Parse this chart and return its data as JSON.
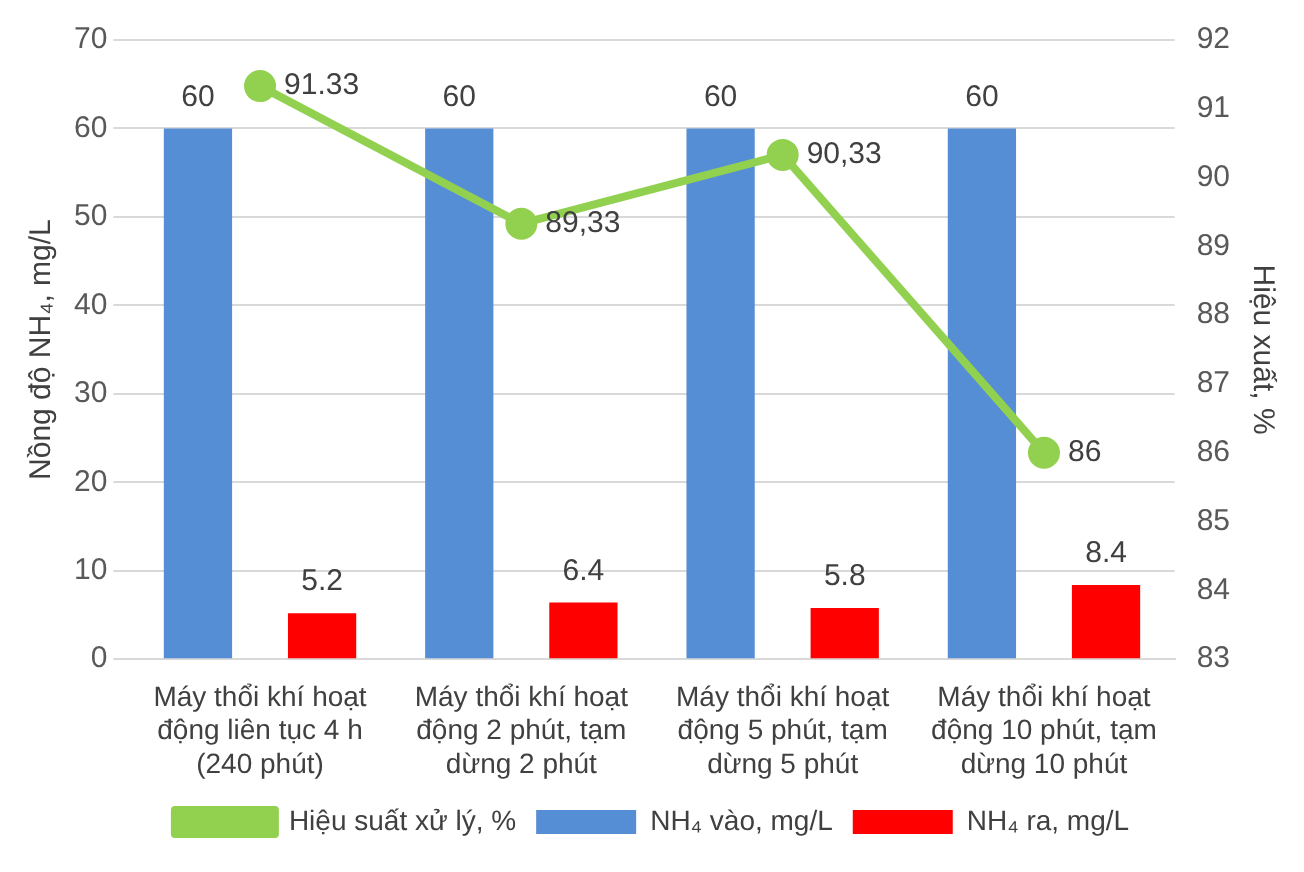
{
  "chart_data": {
    "type": "bar",
    "categories": [
      "Máy thổi khí hoạt động liên tục 4 h (240 phút)",
      "Máy thổi khí hoạt động 2 phút, tạm dừng 2 phút",
      "Máy thổi khí hoạt động 5 phút, tạm dừng 5 phút",
      "Máy thổi khí hoạt động 10 phút, tạm dừng 10 phút"
    ],
    "series": [
      {
        "name": "NH₄ vào, mg/L",
        "color": "#558ed5",
        "values": [
          60,
          60,
          60,
          60
        ],
        "value_labels": [
          "60",
          "60",
          "60",
          "60"
        ]
      },
      {
        "name": "NH₄ ra, mg/L",
        "color": "#ff0000",
        "values": [
          5.2,
          6.4,
          5.8,
          8.4
        ],
        "value_labels": [
          "5.2",
          "6.4",
          "5.8",
          "8.4"
        ]
      },
      {
        "name": "Hiệu suất xử lý, %",
        "type": "line",
        "axis": "y2",
        "color": "#92d050",
        "values": [
          91.33,
          89.33,
          90.33,
          86
        ],
        "value_labels": [
          "91.33",
          "89,33",
          "90,33",
          "86"
        ],
        "marker": "circle"
      }
    ],
    "ylabel": "Nồng độ NH₄, mg/L",
    "y2label": "Hiệu xuất, %",
    "ylim": [
      0,
      70
    ],
    "yticks": [
      0,
      10,
      20,
      30,
      40,
      50,
      60,
      70
    ],
    "y2lim": [
      83,
      92
    ],
    "y2ticks": [
      83,
      84,
      85,
      86,
      87,
      88,
      89,
      90,
      91,
      92
    ],
    "grid": "y",
    "legend": "bottom"
  }
}
